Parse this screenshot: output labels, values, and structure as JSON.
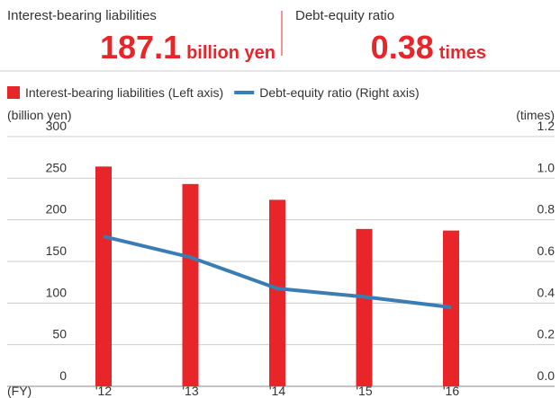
{
  "header": {
    "left_label": "Interest-bearing liabilities",
    "left_value": "187.1",
    "left_unit": "billion yen",
    "right_label": "Debt-equity ratio",
    "right_value": "0.38",
    "right_unit": "times"
  },
  "chart_data": {
    "type": "bar_line",
    "categories": [
      "'12",
      "'13",
      "'14",
      "'15",
      "'16"
    ],
    "series": [
      {
        "name": "Interest-bearing liabilities (Left axis)",
        "type": "bar",
        "color": "#e8262a",
        "values": [
          264,
          243,
          224,
          189,
          187.1
        ]
      },
      {
        "name": "Debt-equity ratio (Right axis)",
        "type": "line",
        "axis": "y2",
        "color": "#3a7db5",
        "values": [
          0.72,
          0.62,
          0.47,
          0.43,
          0.38
        ]
      }
    ],
    "y_label": "(billion yen)",
    "y2_label": "(times)",
    "x_label": "(FY)",
    "ylim": [
      0,
      300
    ],
    "yticks": [
      0,
      50,
      100,
      150,
      200,
      250,
      300
    ],
    "y2lim": [
      0,
      1.2
    ],
    "y2ticks": [
      {
        "value": 0,
        "label": "0.0"
      },
      0.2,
      0.4,
      0.6,
      0.8,
      {
        "value": 1,
        "label": "1.0"
      },
      1.2
    ],
    "grid": true
  }
}
